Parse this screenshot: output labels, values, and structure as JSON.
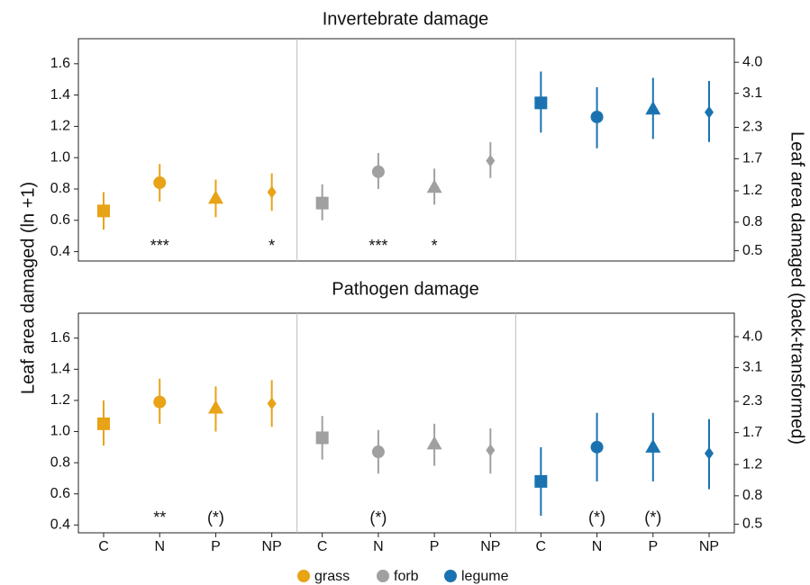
{
  "chart_data": [
    {
      "type": "errorbar",
      "title": "Invertebrate damage",
      "ylabel": "Leaf area damaged (ln +1)",
      "y2label": "Leaf area damaged (back-transformed)",
      "ylim": [
        0.34,
        1.76
      ],
      "yticks": [
        0.4,
        0.6,
        0.8,
        {
          "value": 1,
          "label": "1.0"
        },
        1.2,
        1.4,
        1.6
      ],
      "y2scale": "log1p",
      "y2ticks": [
        0.5,
        0.8,
        1.2,
        1.7,
        2.3,
        3.1,
        {
          "value": 4,
          "label": "4.0"
        }
      ],
      "markers": [
        "square",
        "circle",
        "triangle",
        "diamond"
      ],
      "series": [
        {
          "name": "grass",
          "color": "#e8a317",
          "values": [
            0.66,
            0.84,
            0.74,
            0.78
          ],
          "lower": [
            0.54,
            0.72,
            0.62,
            0.66
          ],
          "upper": [
            0.78,
            0.96,
            0.86,
            0.9
          ],
          "annotations": [
            null,
            "***",
            null,
            "*"
          ]
        },
        {
          "name": "forb",
          "color": "#a0a0a0",
          "values": [
            0.71,
            0.91,
            0.81,
            0.98
          ],
          "lower": [
            0.6,
            0.8,
            0.7,
            0.87
          ],
          "upper": [
            0.83,
            1.03,
            0.93,
            1.1
          ],
          "annotations": [
            null,
            "***",
            "*",
            null
          ]
        },
        {
          "name": "legume",
          "color": "#1a73b0",
          "values": [
            1.35,
            1.26,
            1.31,
            1.29
          ],
          "lower": [
            1.16,
            1.06,
            1.12,
            1.1
          ],
          "upper": [
            1.55,
            1.45,
            1.51,
            1.49
          ],
          "annotations": [
            null,
            null,
            null,
            null
          ]
        }
      ]
    },
    {
      "type": "errorbar",
      "title": "Pathogen damage",
      "categories": [
        "C",
        "N",
        "P",
        "NP"
      ],
      "ylim": [
        0.35,
        1.76
      ],
      "yticks": [
        0.4,
        0.6,
        0.8,
        {
          "value": 1,
          "label": "1.0"
        },
        1.2,
        1.4,
        1.6
      ],
      "y2scale": "log1p",
      "y2ticks": [
        0.5,
        0.8,
        1.2,
        1.7,
        2.3,
        3.1,
        {
          "value": 4,
          "label": "4.0"
        }
      ],
      "markers": [
        "square",
        "circle",
        "triangle",
        "diamond"
      ],
      "series": [
        {
          "color": "#e8a317",
          "values": [
            1.05,
            1.19,
            1.15,
            1.18
          ],
          "lower": [
            0.91,
            1.05,
            1.0,
            1.03
          ],
          "upper": [
            1.2,
            1.34,
            1.29,
            1.33
          ],
          "annotations": [
            null,
            "**",
            "(*)",
            null
          ]
        },
        {
          "color": "#a0a0a0",
          "values": [
            0.96,
            0.87,
            0.92,
            0.88
          ],
          "lower": [
            0.82,
            0.73,
            0.78,
            0.73
          ],
          "upper": [
            1.1,
            1.01,
            1.05,
            1.02
          ],
          "annotations": [
            null,
            "(*)",
            null,
            null
          ]
        },
        {
          "color": "#1a73b0",
          "values": [
            0.68,
            0.9,
            0.9,
            0.86
          ],
          "lower": [
            0.46,
            0.68,
            0.68,
            0.63
          ],
          "upper": [
            0.9,
            1.12,
            1.12,
            1.08
          ],
          "annotations": [
            null,
            "(*)",
            "(*)",
            null
          ]
        }
      ]
    }
  ]
}
